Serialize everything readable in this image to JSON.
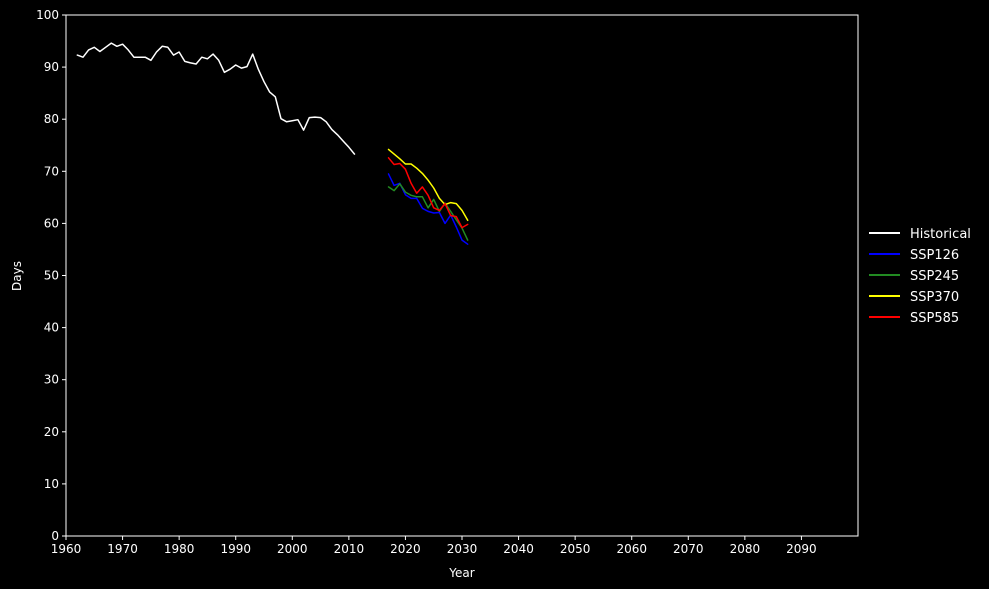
{
  "chart_data": {
    "type": "line",
    "title": "",
    "xlabel": "Year",
    "ylabel": "Days",
    "xlim": [
      1960,
      2100
    ],
    "ylim": [
      0,
      100
    ],
    "xticks": [
      1960,
      1970,
      1980,
      1990,
      2000,
      2010,
      2020,
      2030,
      2040,
      2050,
      2060,
      2070,
      2080,
      2090
    ],
    "yticks": [
      0,
      10,
      20,
      30,
      40,
      50,
      60,
      70,
      80,
      90,
      100
    ],
    "grid": false,
    "legend_position": "right",
    "series": [
      {
        "name": "Historical",
        "color": "#ffffff",
        "x": [
          1962,
          1963,
          1964,
          1965,
          1966,
          1967,
          1968,
          1969,
          1970,
          1971,
          1972,
          1973,
          1974,
          1975,
          1976,
          1977,
          1978,
          1979,
          1980,
          1981,
          1982,
          1983,
          1984,
          1985,
          1986,
          1987,
          1988,
          1989,
          1990,
          1991,
          1992,
          1993,
          1994,
          1995,
          1996,
          1997,
          1998,
          1999,
          2000,
          2001,
          2002,
          2003,
          2004,
          2005,
          2006,
          2007,
          2008,
          2009,
          2010,
          2011
        ],
        "y": [
          92.3,
          91.9,
          93.3,
          93.8,
          93.0,
          93.8,
          94.6,
          94.0,
          94.4,
          93.3,
          91.9,
          91.9,
          91.9,
          91.3,
          92.9,
          94.0,
          93.8,
          92.3,
          92.9,
          91.1,
          90.8,
          90.6,
          91.9,
          91.6,
          92.5,
          91.3,
          89.0,
          89.6,
          90.4,
          89.8,
          90.1,
          92.5,
          89.6,
          87.2,
          85.2,
          84.3,
          80.1,
          79.5,
          79.7,
          79.9,
          77.9,
          80.3,
          80.4,
          80.3,
          79.5,
          78.0,
          77.0,
          75.8,
          74.6,
          73.3
        ]
      },
      {
        "name": "SSP126",
        "color": "#0000ff",
        "x": [
          2017,
          2018,
          2019,
          2020,
          2021,
          2022,
          2023,
          2024,
          2025,
          2026,
          2027,
          2028,
          2029,
          2030,
          2031
        ],
        "y": [
          69.5,
          67.3,
          67.7,
          65.5,
          64.8,
          64.8,
          62.9,
          62.3,
          62.0,
          62.1,
          60.0,
          61.6,
          59.3,
          56.8,
          56.0
        ]
      },
      {
        "name": "SSP245",
        "color": "#228b22",
        "x": [
          2017,
          2018,
          2019,
          2020,
          2021,
          2022,
          2023,
          2024,
          2025,
          2026,
          2027,
          2028,
          2029,
          2030,
          2031
        ],
        "y": [
          67.0,
          66.3,
          67.6,
          66.0,
          65.4,
          65.1,
          65.1,
          63.0,
          64.6,
          62.3,
          63.9,
          62.3,
          60.7,
          59.1,
          56.8
        ]
      },
      {
        "name": "SSP370",
        "color": "#ffff00",
        "x": [
          2017,
          2018,
          2019,
          2020,
          2021,
          2022,
          2023,
          2024,
          2025,
          2026,
          2027,
          2028,
          2029,
          2030,
          2031
        ],
        "y": [
          74.2,
          73.3,
          72.4,
          71.4,
          71.4,
          70.6,
          69.6,
          68.3,
          66.8,
          64.8,
          63.6,
          64.0,
          63.8,
          62.5,
          60.6
        ]
      },
      {
        "name": "SSP585",
        "color": "#ff0000",
        "x": [
          2017,
          2018,
          2019,
          2020,
          2021,
          2022,
          2023,
          2024,
          2025,
          2026,
          2027,
          2028,
          2029,
          2030,
          2031
        ],
        "y": [
          72.6,
          71.3,
          71.5,
          70.4,
          67.7,
          65.8,
          67.0,
          65.4,
          63.0,
          62.5,
          63.8,
          61.5,
          61.3,
          59.2,
          59.8
        ]
      }
    ]
  }
}
